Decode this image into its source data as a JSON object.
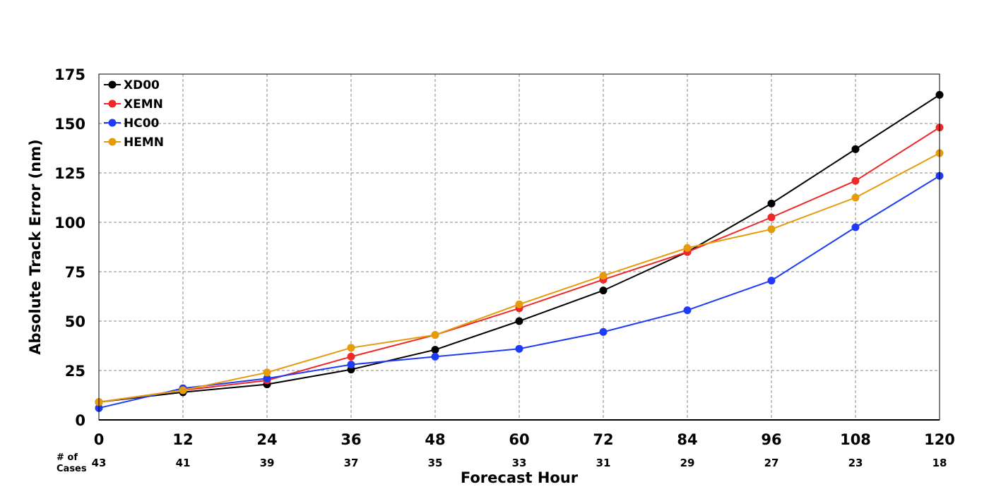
{
  "chart_data": {
    "type": "line",
    "xlabel": "Forecast Hour",
    "ylabel": "Absolute Track Error (nm)",
    "x": [
      0,
      12,
      24,
      36,
      48,
      60,
      72,
      84,
      96,
      108,
      120
    ],
    "xlim": [
      0,
      120
    ],
    "ylim": [
      0,
      175
    ],
    "yticks": [
      0,
      25,
      50,
      75,
      100,
      125,
      150,
      175
    ],
    "grid": true,
    "legend_position": "top-left",
    "cases_label_line1": "# of",
    "cases_label_line2": "Cases",
    "cases": [
      43,
      41,
      39,
      37,
      35,
      33,
      31,
      29,
      27,
      23,
      18
    ],
    "series": [
      {
        "name": "XD00",
        "color": "#000000",
        "values": [
          9,
          14,
          18,
          25.5,
          35.5,
          50,
          65.5,
          85,
          109.5,
          137,
          164.5
        ]
      },
      {
        "name": "XEMN",
        "color": "#f02828",
        "values": [
          9,
          15,
          20,
          32,
          43,
          56.5,
          71,
          85,
          102.5,
          121,
          148
        ]
      },
      {
        "name": "HC00",
        "color": "#1e3cf5",
        "values": [
          6,
          16,
          21,
          28,
          32,
          36,
          44.5,
          55.5,
          70.5,
          97.5,
          123.5
        ]
      },
      {
        "name": "HEMN",
        "color": "#e69b0a",
        "values": [
          9,
          15,
          24,
          36.5,
          43,
          58.5,
          73,
          87,
          96.5,
          112.5,
          135
        ]
      }
    ]
  }
}
